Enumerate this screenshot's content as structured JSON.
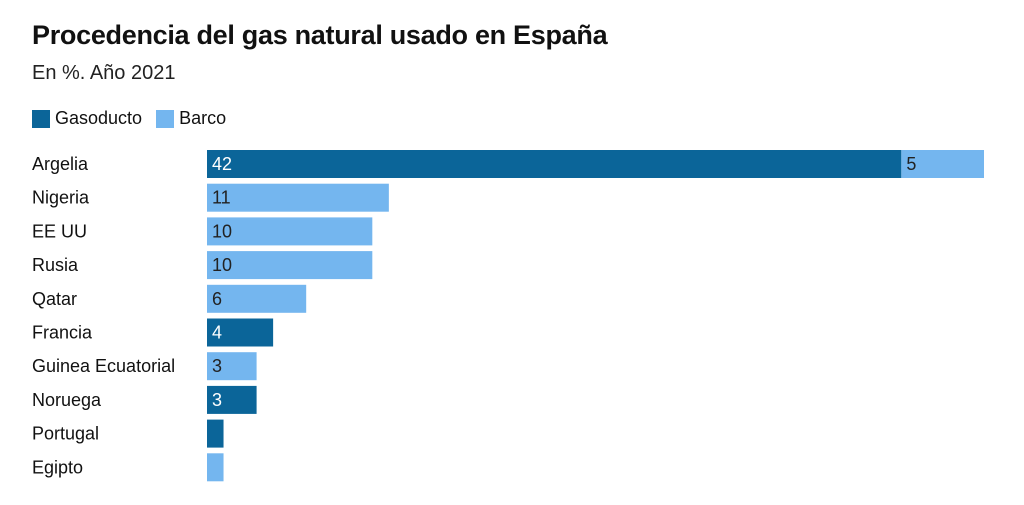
{
  "chart_data": {
    "type": "bar",
    "orientation": "horizontal",
    "stacked": true,
    "title": "Procedencia del gas natural usado en España",
    "subtitle": "En %. Año 2021",
    "categories": [
      "Argelia",
      "Nigeria",
      "EE UU",
      "Rusia",
      "Qatar",
      "Francia",
      "Guinea Ecuatorial",
      "Noruega",
      "Portugal",
      "Egipto"
    ],
    "series": [
      {
        "name": "Gasoducto",
        "color": "#0b6599",
        "values": [
          42,
          0,
          0,
          0,
          0,
          4,
          0,
          3,
          1,
          0
        ]
      },
      {
        "name": "Barco",
        "color": "#74b6ef",
        "values": [
          5,
          11,
          10,
          10,
          6,
          0,
          3,
          0,
          0,
          1
        ]
      }
    ],
    "labels": [
      [
        "42",
        "5"
      ],
      [
        "",
        "11"
      ],
      [
        "",
        "10"
      ],
      [
        "",
        "10"
      ],
      [
        "",
        "6"
      ],
      [
        "4",
        ""
      ],
      [
        "",
        "3"
      ],
      [
        "3",
        ""
      ],
      [
        "",
        ""
      ],
      [
        "",
        ""
      ]
    ],
    "xlim": [
      0,
      47
    ],
    "grid": false,
    "legend_position": "top-left"
  }
}
